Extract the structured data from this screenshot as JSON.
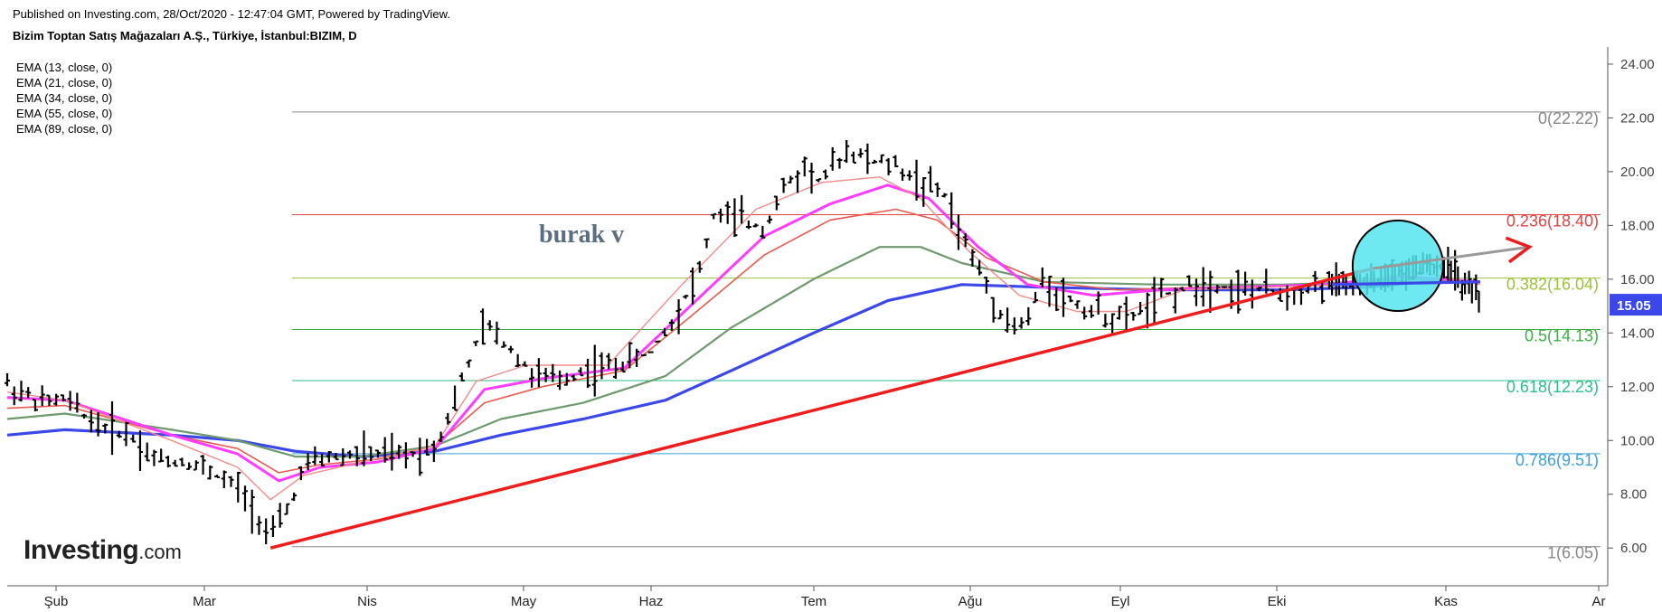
{
  "header": {
    "published": "Published on Investing.com, 28/Oct/2020 - 12:47:04 GMT, Powered by TradingView.",
    "symbol": "Bizim Toptan Satış Mağazaları A.Ş., Türkiye, İstanbul:BIZIM, D"
  },
  "indicators": [
    {
      "label": "EMA (13, close, 0)",
      "color": "#f28c8c"
    },
    {
      "label": "EMA (21, close, 0)",
      "color": "#ff3cff"
    },
    {
      "label": "EMA (34, close, 0)",
      "color": "#e85a50"
    },
    {
      "label": "EMA (55, close, 0)",
      "color": "#6e9a6e"
    },
    {
      "label": "EMA (89, close, 0)",
      "color": "#3b47e8"
    }
  ],
  "annotation": "burak v",
  "logo": {
    "bold": "Investing",
    "suffix": ".com"
  },
  "chart_data": {
    "type": "bar",
    "x_labels": [
      "Şub",
      "Mar",
      "Nis",
      "May",
      "Haz",
      "Tem",
      "Ağu",
      "Eyl",
      "Eki",
      "Kas",
      "Ar"
    ],
    "y_ticks": [
      "24.00",
      "22.00",
      "20.00",
      "18.00",
      "16.00",
      "14.00",
      "12.00",
      "10.00",
      "8.00",
      "6.00"
    ],
    "ylim": [
      5.2,
      24.2
    ],
    "last_price": "15.05",
    "fib_levels": [
      {
        "label": "0(22.22)",
        "value": 22.22,
        "color": "#888888"
      },
      {
        "label": "0.236(18.40)",
        "value": 18.4,
        "color": "#e04545"
      },
      {
        "label": "0.382(16.04)",
        "value": 16.04,
        "color": "#9bc23a"
      },
      {
        "label": "0.5(14.13)",
        "value": 14.13,
        "color": "#3cb043"
      },
      {
        "label": "0.618(12.23)",
        "value": 12.23,
        "color": "#2fbf8a"
      },
      {
        "label": "0.786(9.51)",
        "value": 9.51,
        "color": "#3ba0d8"
      },
      {
        "label": "1(6.05)",
        "value": 6.05,
        "color": "#888888"
      }
    ],
    "close_path": [
      [
        0,
        12.1
      ],
      [
        8,
        11.4
      ],
      [
        14,
        11.5
      ],
      [
        22,
        10.6
      ],
      [
        30,
        10.2
      ],
      [
        36,
        9.3
      ],
      [
        44,
        9.2
      ],
      [
        50,
        8.8
      ],
      [
        56,
        8.2
      ],
      [
        60,
        7.5
      ],
      [
        64,
        6.3
      ],
      [
        68,
        7.4
      ],
      [
        72,
        8.9
      ],
      [
        76,
        9.3
      ],
      [
        86,
        9.5
      ],
      [
        96,
        9.4
      ],
      [
        104,
        9.8
      ],
      [
        108,
        11.2
      ],
      [
        112,
        12.8
      ],
      [
        116,
        14.3
      ],
      [
        122,
        13.5
      ],
      [
        128,
        12.4
      ],
      [
        134,
        12.2
      ],
      [
        140,
        12.6
      ],
      [
        148,
        12.8
      ],
      [
        156,
        13.2
      ],
      [
        162,
        14.6
      ],
      [
        168,
        16.2
      ],
      [
        172,
        18.5
      ],
      [
        178,
        18.2
      ],
      [
        184,
        17.9
      ],
      [
        188,
        19.2
      ],
      [
        194,
        20.2
      ],
      [
        198,
        19.6
      ],
      [
        204,
        20.8
      ],
      [
        210,
        20.4
      ],
      [
        216,
        20.2
      ],
      [
        222,
        19.6
      ],
      [
        228,
        19.1
      ],
      [
        232,
        17.6
      ],
      [
        236,
        16.4
      ],
      [
        240,
        15.2
      ],
      [
        244,
        14.2
      ],
      [
        248,
        14.4
      ],
      [
        252,
        16.1
      ],
      [
        256,
        15.4
      ],
      [
        264,
        14.8
      ],
      [
        272,
        14.5
      ],
      [
        280,
        15.3
      ],
      [
        290,
        15.9
      ],
      [
        300,
        15.6
      ],
      [
        310,
        15.5
      ],
      [
        320,
        15.8
      ],
      [
        330,
        15.8
      ],
      [
        338,
        16.2
      ],
      [
        344,
        16.6
      ],
      [
        350,
        16.4
      ],
      [
        354,
        15.9
      ],
      [
        358,
        15.1
      ]
    ],
    "ema_series": [
      {
        "name": "EMA (89, close, 0)",
        "color": "#3b47e8",
        "width": 3.2,
        "points": [
          [
            0,
            10.2
          ],
          [
            14,
            10.4
          ],
          [
            40,
            10.2
          ],
          [
            56,
            10.0
          ],
          [
            70,
            9.6
          ],
          [
            86,
            9.4
          ],
          [
            104,
            9.6
          ],
          [
            120,
            10.2
          ],
          [
            140,
            10.8
          ],
          [
            160,
            11.5
          ],
          [
            176,
            12.6
          ],
          [
            196,
            14.0
          ],
          [
            214,
            15.2
          ],
          [
            232,
            15.8
          ],
          [
            252,
            15.7
          ],
          [
            280,
            15.6
          ],
          [
            310,
            15.6
          ],
          [
            330,
            15.7
          ],
          [
            344,
            15.9
          ],
          [
            358,
            15.9
          ]
        ]
      },
      {
        "name": "EMA (55, close, 0)",
        "color": "#6e9a6e",
        "width": 2.2,
        "points": [
          [
            0,
            10.8
          ],
          [
            14,
            11.0
          ],
          [
            40,
            10.4
          ],
          [
            56,
            10.0
          ],
          [
            70,
            9.4
          ],
          [
            86,
            9.4
          ],
          [
            104,
            9.8
          ],
          [
            120,
            10.8
          ],
          [
            140,
            11.4
          ],
          [
            160,
            12.4
          ],
          [
            176,
            14.2
          ],
          [
            196,
            16.0
          ],
          [
            212,
            17.2
          ],
          [
            222,
            17.2
          ],
          [
            232,
            16.6
          ],
          [
            252,
            15.9
          ],
          [
            280,
            15.8
          ],
          [
            310,
            15.8
          ],
          [
            330,
            15.9
          ],
          [
            344,
            16.0
          ],
          [
            358,
            15.9
          ]
        ]
      },
      {
        "name": "EMA (34, close, 0)",
        "color": "#e85a50",
        "width": 1.6,
        "points": [
          [
            0,
            11.2
          ],
          [
            14,
            11.3
          ],
          [
            40,
            10.2
          ],
          [
            56,
            9.7
          ],
          [
            66,
            8.8
          ],
          [
            76,
            9.1
          ],
          [
            90,
            9.3
          ],
          [
            104,
            9.8
          ],
          [
            116,
            11.4
          ],
          [
            130,
            12.0
          ],
          [
            150,
            12.6
          ],
          [
            166,
            14.6
          ],
          [
            184,
            16.9
          ],
          [
            200,
            18.2
          ],
          [
            216,
            18.6
          ],
          [
            226,
            18.2
          ],
          [
            238,
            16.8
          ],
          [
            252,
            15.9
          ],
          [
            270,
            15.6
          ],
          [
            290,
            15.7
          ],
          [
            320,
            15.8
          ],
          [
            340,
            15.9
          ],
          [
            358,
            15.9
          ]
        ]
      },
      {
        "name": "EMA (21, close, 0)",
        "color": "#ff3cff",
        "width": 3.0,
        "points": [
          [
            0,
            11.6
          ],
          [
            14,
            11.5
          ],
          [
            40,
            10.2
          ],
          [
            56,
            9.5
          ],
          [
            66,
            8.5
          ],
          [
            76,
            9.0
          ],
          [
            90,
            9.2
          ],
          [
            104,
            9.7
          ],
          [
            116,
            11.9
          ],
          [
            130,
            12.3
          ],
          [
            150,
            12.7
          ],
          [
            166,
            15.0
          ],
          [
            184,
            17.6
          ],
          [
            200,
            18.8
          ],
          [
            214,
            19.5
          ],
          [
            224,
            19.0
          ],
          [
            236,
            17.2
          ],
          [
            248,
            15.8
          ],
          [
            264,
            15.4
          ],
          [
            280,
            15.6
          ],
          [
            300,
            15.7
          ],
          [
            320,
            15.8
          ],
          [
            340,
            16.1
          ],
          [
            358,
            15.9
          ]
        ]
      },
      {
        "name": "EMA (13, close, 0)",
        "color": "#f28c8c",
        "width": 1.4,
        "points": [
          [
            0,
            11.8
          ],
          [
            14,
            11.5
          ],
          [
            40,
            10.0
          ],
          [
            56,
            9.0
          ],
          [
            64,
            7.8
          ],
          [
            72,
            8.7
          ],
          [
            86,
            9.2
          ],
          [
            104,
            9.8
          ],
          [
            114,
            12.2
          ],
          [
            126,
            12.8
          ],
          [
            146,
            12.8
          ],
          [
            164,
            15.8
          ],
          [
            182,
            18.6
          ],
          [
            198,
            19.6
          ],
          [
            212,
            19.8
          ],
          [
            222,
            19.0
          ],
          [
            234,
            17.0
          ],
          [
            246,
            15.4
          ],
          [
            260,
            14.8
          ],
          [
            272,
            14.8
          ],
          [
            286,
            15.6
          ],
          [
            306,
            15.7
          ],
          [
            326,
            15.8
          ],
          [
            342,
            16.3
          ],
          [
            358,
            15.8
          ]
        ]
      }
    ],
    "trendline": {
      "from": [
        64,
        6.0
      ],
      "to": [
        332,
        16.4
      ],
      "arrow_to": [
        370,
        17.2
      ]
    },
    "circle": {
      "center": [
        338,
        16.5
      ],
      "radius_days": 11
    }
  }
}
